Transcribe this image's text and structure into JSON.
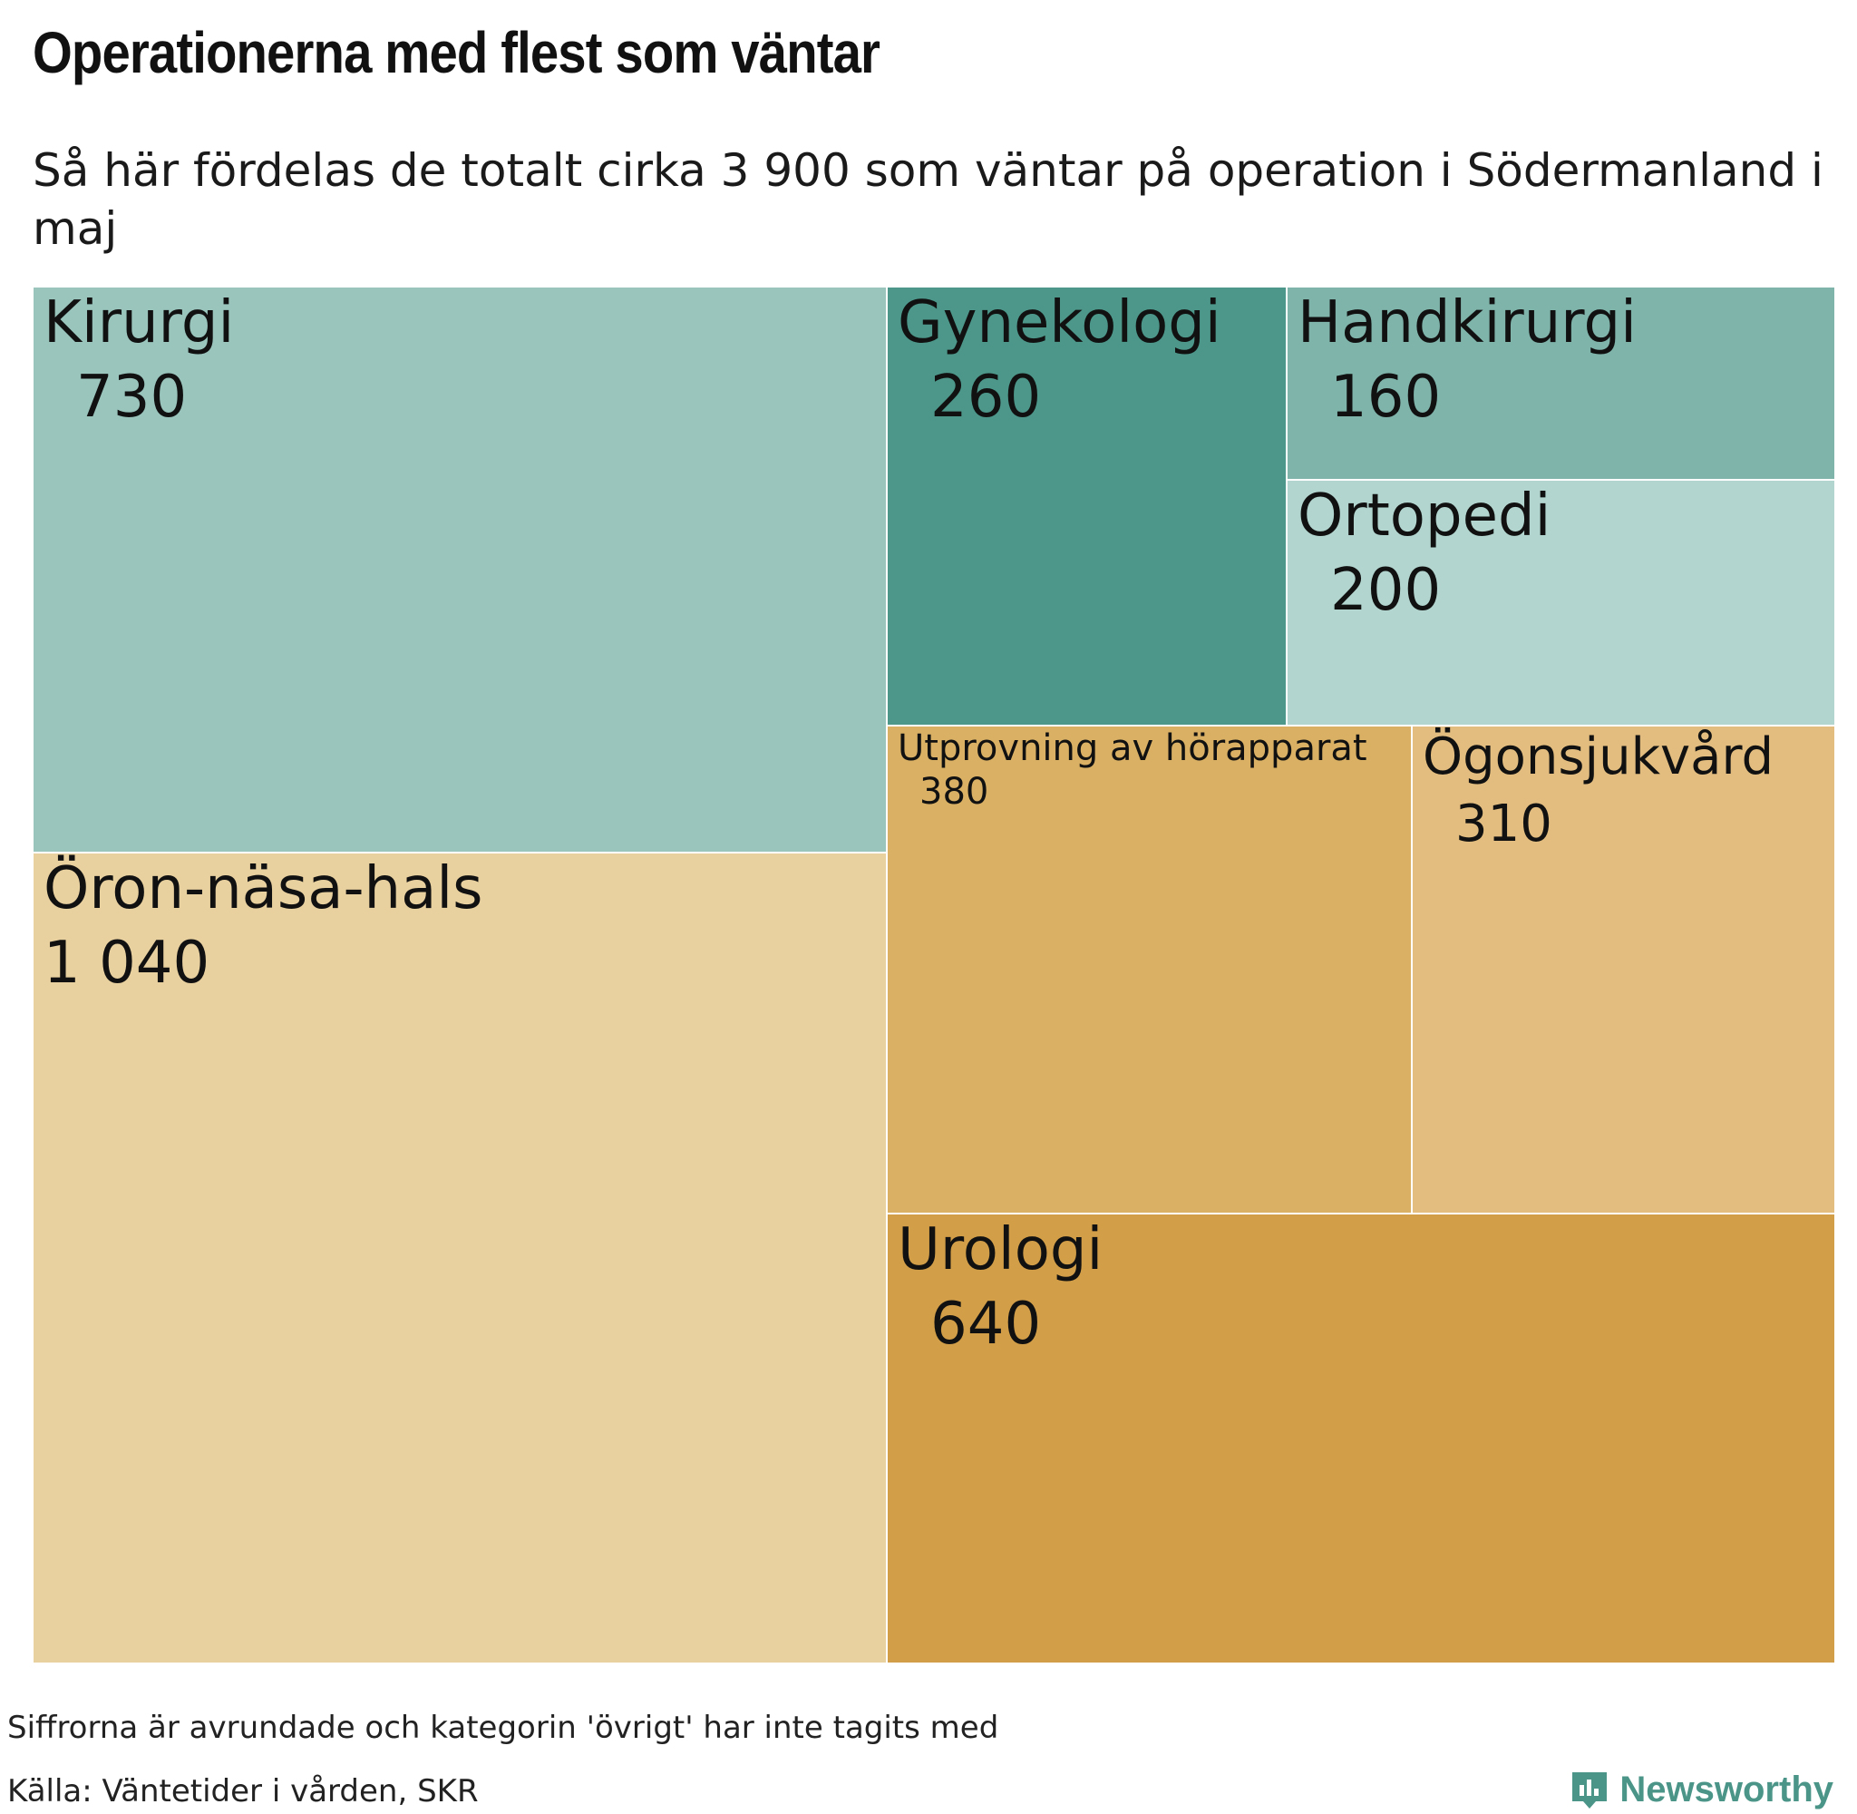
{
  "header": {
    "title": "Operationerna med flest som väntar",
    "subtitle": "Så här fördelas de totalt cirka 3 900 som väntar på operation i Södermanland i maj"
  },
  "chart_data": {
    "type": "treemap",
    "title": "Operationerna med flest som väntar",
    "subtitle": "Så här fördelas de totalt cirka 3 900 som väntar på operation i Södermanland i maj",
    "items": [
      {
        "name": "Kirurgi",
        "label": "730",
        "value": 730,
        "color": "#99c5bd"
      },
      {
        "name": "Öron-näsa-hals",
        "label": "1 040",
        "value": 1040,
        "color": "#e8d09f"
      },
      {
        "name": "Gynekologi",
        "label": "260",
        "value": 260,
        "color": "#4c978a"
      },
      {
        "name": "Handkirurgi",
        "label": "160",
        "value": 160,
        "color": "#7fb4ab"
      },
      {
        "name": "Ortopedi",
        "label": "200",
        "value": 200,
        "color": "#b2d6cf"
      },
      {
        "name": "Utprovning av hörapparat",
        "label": "380",
        "value": 380,
        "color": "#d9b064"
      },
      {
        "name": "Ögonsjukvård",
        "label": "310",
        "value": 310,
        "color": "#e2bd7f"
      },
      {
        "name": "Urologi",
        "label": "640",
        "value": 640,
        "color": "#d29e48"
      }
    ]
  },
  "footer": {
    "note": "Siffrorna är avrundade och kategorin 'övrigt' har inte tagits med",
    "source": "Källa: Väntetider i vården, SKR",
    "brand": "Newsworthy",
    "brand_color": "#4b9488"
  }
}
